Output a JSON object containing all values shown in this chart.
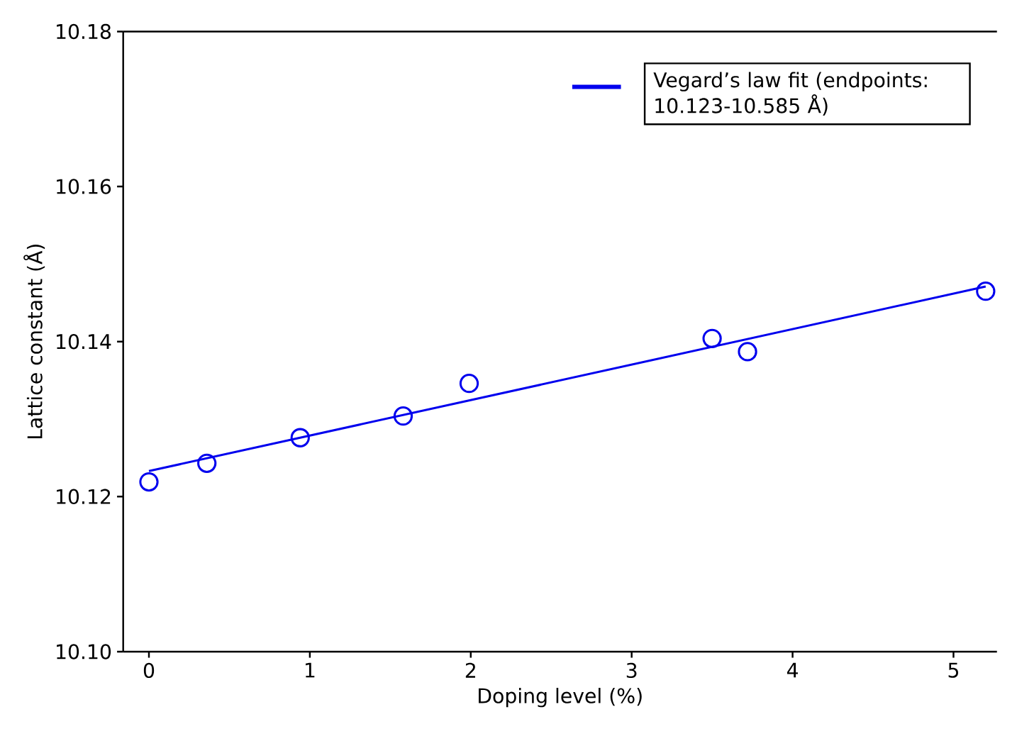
{
  "chart_data": {
    "type": "scatter",
    "xlabel": "Doping level (%)",
    "ylabel": "Lattice constant (Å)",
    "xlim": [
      -0.16,
      5.27
    ],
    "ylim": [
      10.1,
      10.18
    ],
    "xticks": [
      0,
      1,
      2,
      3,
      4,
      5
    ],
    "yticks": [
      {
        "value": 10.1,
        "label": "10.10"
      },
      10.12,
      10.14,
      10.16,
      10.18
    ],
    "legend": "top right",
    "series": [
      {
        "type": "scatter",
        "marker": "circle",
        "color": "#0000ee",
        "x": [
          0,
          0.36,
          0.94,
          1.58,
          1.99,
          3.5,
          3.72,
          5.2
        ],
        "values": [
          10.1219,
          10.1243,
          10.1276,
          10.1304,
          10.1346,
          10.1404,
          10.1387,
          10.1465
        ]
      },
      {
        "type": "line",
        "marker": "none",
        "name": "Vegard’s law fit (endpoints: 10.123-10.585 Å)",
        "color": "#0000ee",
        "x": [
          0,
          5.2
        ],
        "values": [
          10.1233,
          10.1471
        ]
      }
    ]
  }
}
